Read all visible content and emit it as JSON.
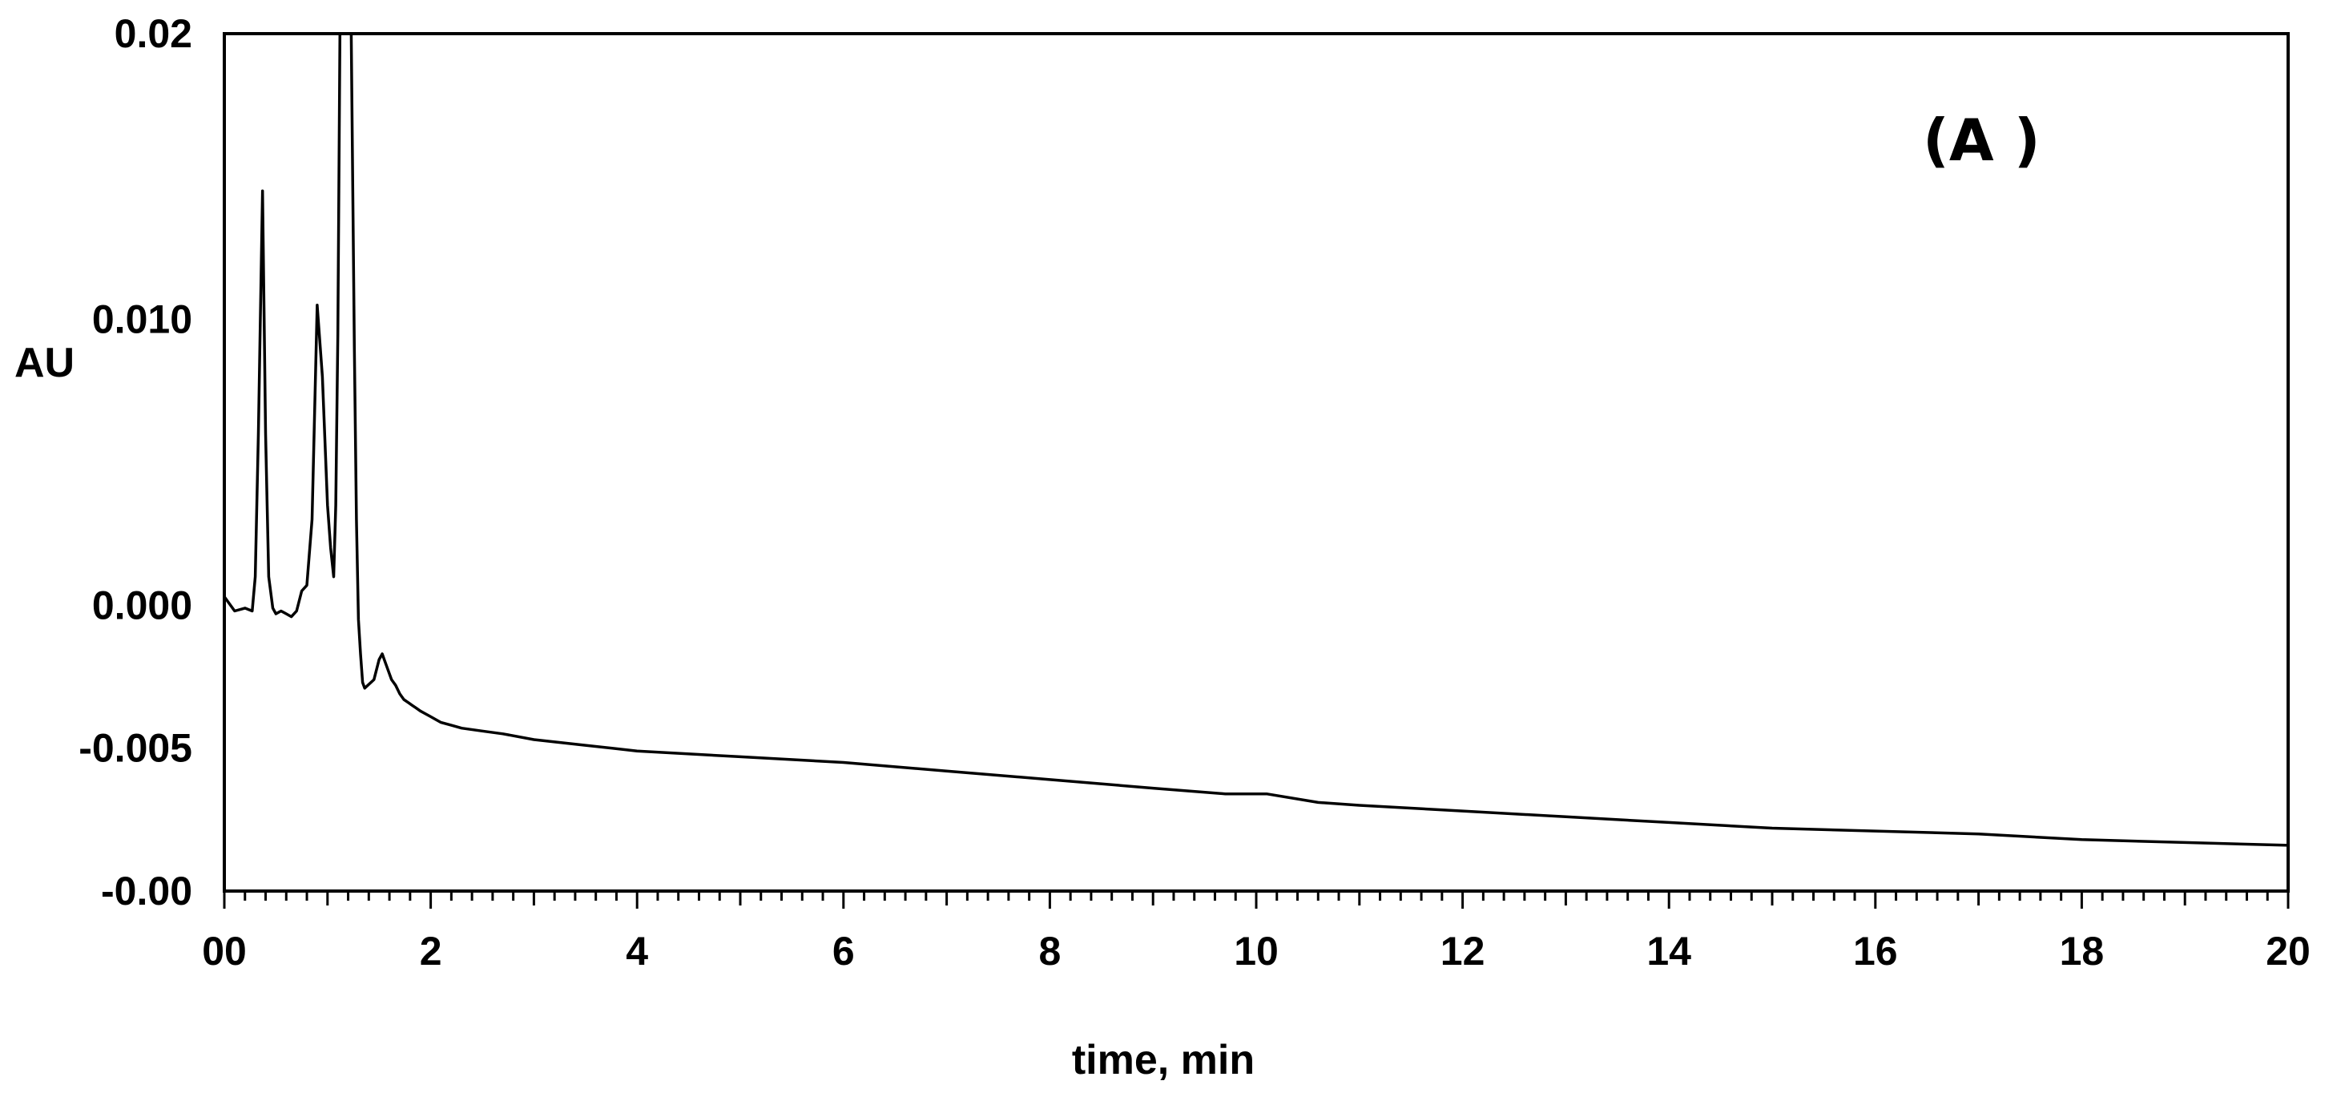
{
  "chart_data": {
    "type": "line",
    "title": "",
    "panel_label": "(A )",
    "xlabel": "time, min",
    "ylabel": "AU",
    "xlim": [
      0,
      20
    ],
    "ylim": [
      -0.01,
      0.02
    ],
    "grid": false,
    "legend": "none",
    "line_color": "#000000",
    "x_ticks": [
      {
        "value": 0,
        "label": "00"
      },
      {
        "value": 2,
        "label": "2"
      },
      {
        "value": 4,
        "label": "4"
      },
      {
        "value": 6,
        "label": "6"
      },
      {
        "value": 8,
        "label": "8"
      },
      {
        "value": 10,
        "label": "10"
      },
      {
        "value": 12,
        "label": "12"
      },
      {
        "value": 14,
        "label": "14"
      },
      {
        "value": 16,
        "label": "16"
      },
      {
        "value": 18,
        "label": "18"
      },
      {
        "value": 20,
        "label": "20"
      }
    ],
    "y_ticks": [
      {
        "value": 0.02,
        "label": "0.02"
      },
      {
        "value": 0.01,
        "label": "0.010"
      },
      {
        "value": 0.0,
        "label": "0.000"
      },
      {
        "value": -0.005,
        "label": "-0.005"
      },
      {
        "value": -0.01,
        "label": "-0.00"
      }
    ],
    "series": [
      {
        "x": [
          0.0,
          0.1,
          0.2,
          0.27,
          0.3,
          0.33,
          0.37,
          0.4,
          0.43,
          0.47,
          0.5,
          0.55,
          0.6,
          0.65,
          0.7,
          0.75,
          0.8,
          0.85,
          0.9,
          0.95,
          1.0,
          1.03,
          1.06,
          1.08,
          1.1,
          1.12,
          1.14,
          1.17,
          1.2,
          1.23,
          1.26,
          1.28,
          1.3,
          1.32,
          1.34,
          1.36,
          1.45,
          1.5,
          1.53,
          1.55,
          1.58,
          1.62,
          1.66,
          1.7,
          1.74,
          1.78,
          1.82,
          1.86,
          1.9,
          1.95,
          2.0,
          2.05,
          2.1,
          2.2,
          2.3,
          2.5,
          2.7,
          3.0,
          3.5,
          4.0,
          5.0,
          6.0,
          7.0,
          8.0,
          9.0,
          9.7,
          10.1,
          10.6,
          11.0,
          12.0,
          13.0,
          14.0,
          15.0,
          16.0,
          17.0,
          18.0,
          19.0,
          20.0
        ],
        "y": [
          0.0003,
          -0.0002,
          -0.0001,
          -0.0002,
          0.001,
          0.006,
          0.0145,
          0.006,
          0.001,
          -0.0001,
          -0.0003,
          -0.0002,
          -0.0003,
          -0.0004,
          -0.0002,
          0.0005,
          0.0007,
          0.003,
          0.0105,
          0.008,
          0.0035,
          0.002,
          0.001,
          0.0035,
          0.0095,
          0.02,
          0.02,
          0.02,
          0.02,
          0.02,
          0.009,
          0.003,
          -0.0005,
          -0.0017,
          -0.0027,
          -0.0029,
          -0.0026,
          -0.0019,
          -0.0017,
          -0.0019,
          -0.0022,
          -0.0026,
          -0.0028,
          -0.0031,
          -0.0033,
          -0.0034,
          -0.0035,
          -0.0036,
          -0.0037,
          -0.0038,
          -0.0039,
          -0.004,
          -0.0041,
          -0.0042,
          -0.0043,
          -0.0044,
          -0.0045,
          -0.0047,
          -0.0049,
          -0.0051,
          -0.0053,
          -0.0055,
          -0.0058,
          -0.0061,
          -0.0064,
          -0.0066,
          -0.0066,
          -0.0069,
          -0.007,
          -0.0072,
          -0.0074,
          -0.0076,
          -0.0078,
          -0.0079,
          -0.008,
          -0.0082,
          -0.0083,
          -0.0084
        ]
      }
    ]
  }
}
